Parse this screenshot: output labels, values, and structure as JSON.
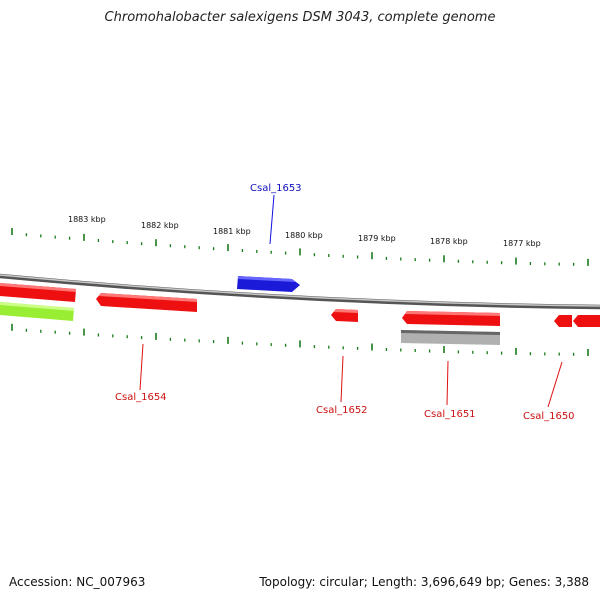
{
  "title": "Chromohalobacter salexigens DSM 3043, complete genome",
  "accession_text": "Accession: NC_007963",
  "topology_text": "Topology: circular; Length: 3,696,649 bp; Genes: 3,388",
  "colors": {
    "forward_gene": "#1010e0",
    "reverse_gene": "#ee1111",
    "rna_gene": "#aaaaaa",
    "other_gene": "#99ee33",
    "backbone": "#888888",
    "ticks": "#1a7a1a"
  },
  "scale_labels": [
    "1883 kbp",
    "1882 kbp",
    "1881 kbp",
    "1880 kbp",
    "1879 kbp",
    "1878 kbp",
    "1877 kbp"
  ],
  "gene_labels": [
    {
      "id": "Csal_1653",
      "strand": "forward"
    },
    {
      "id": "Csal_1654",
      "strand": "reverse"
    },
    {
      "id": "Csal_1652",
      "strand": "reverse"
    },
    {
      "id": "Csal_1651",
      "strand": "reverse"
    },
    {
      "id": "Csal_1650",
      "strand": "reverse"
    }
  ]
}
